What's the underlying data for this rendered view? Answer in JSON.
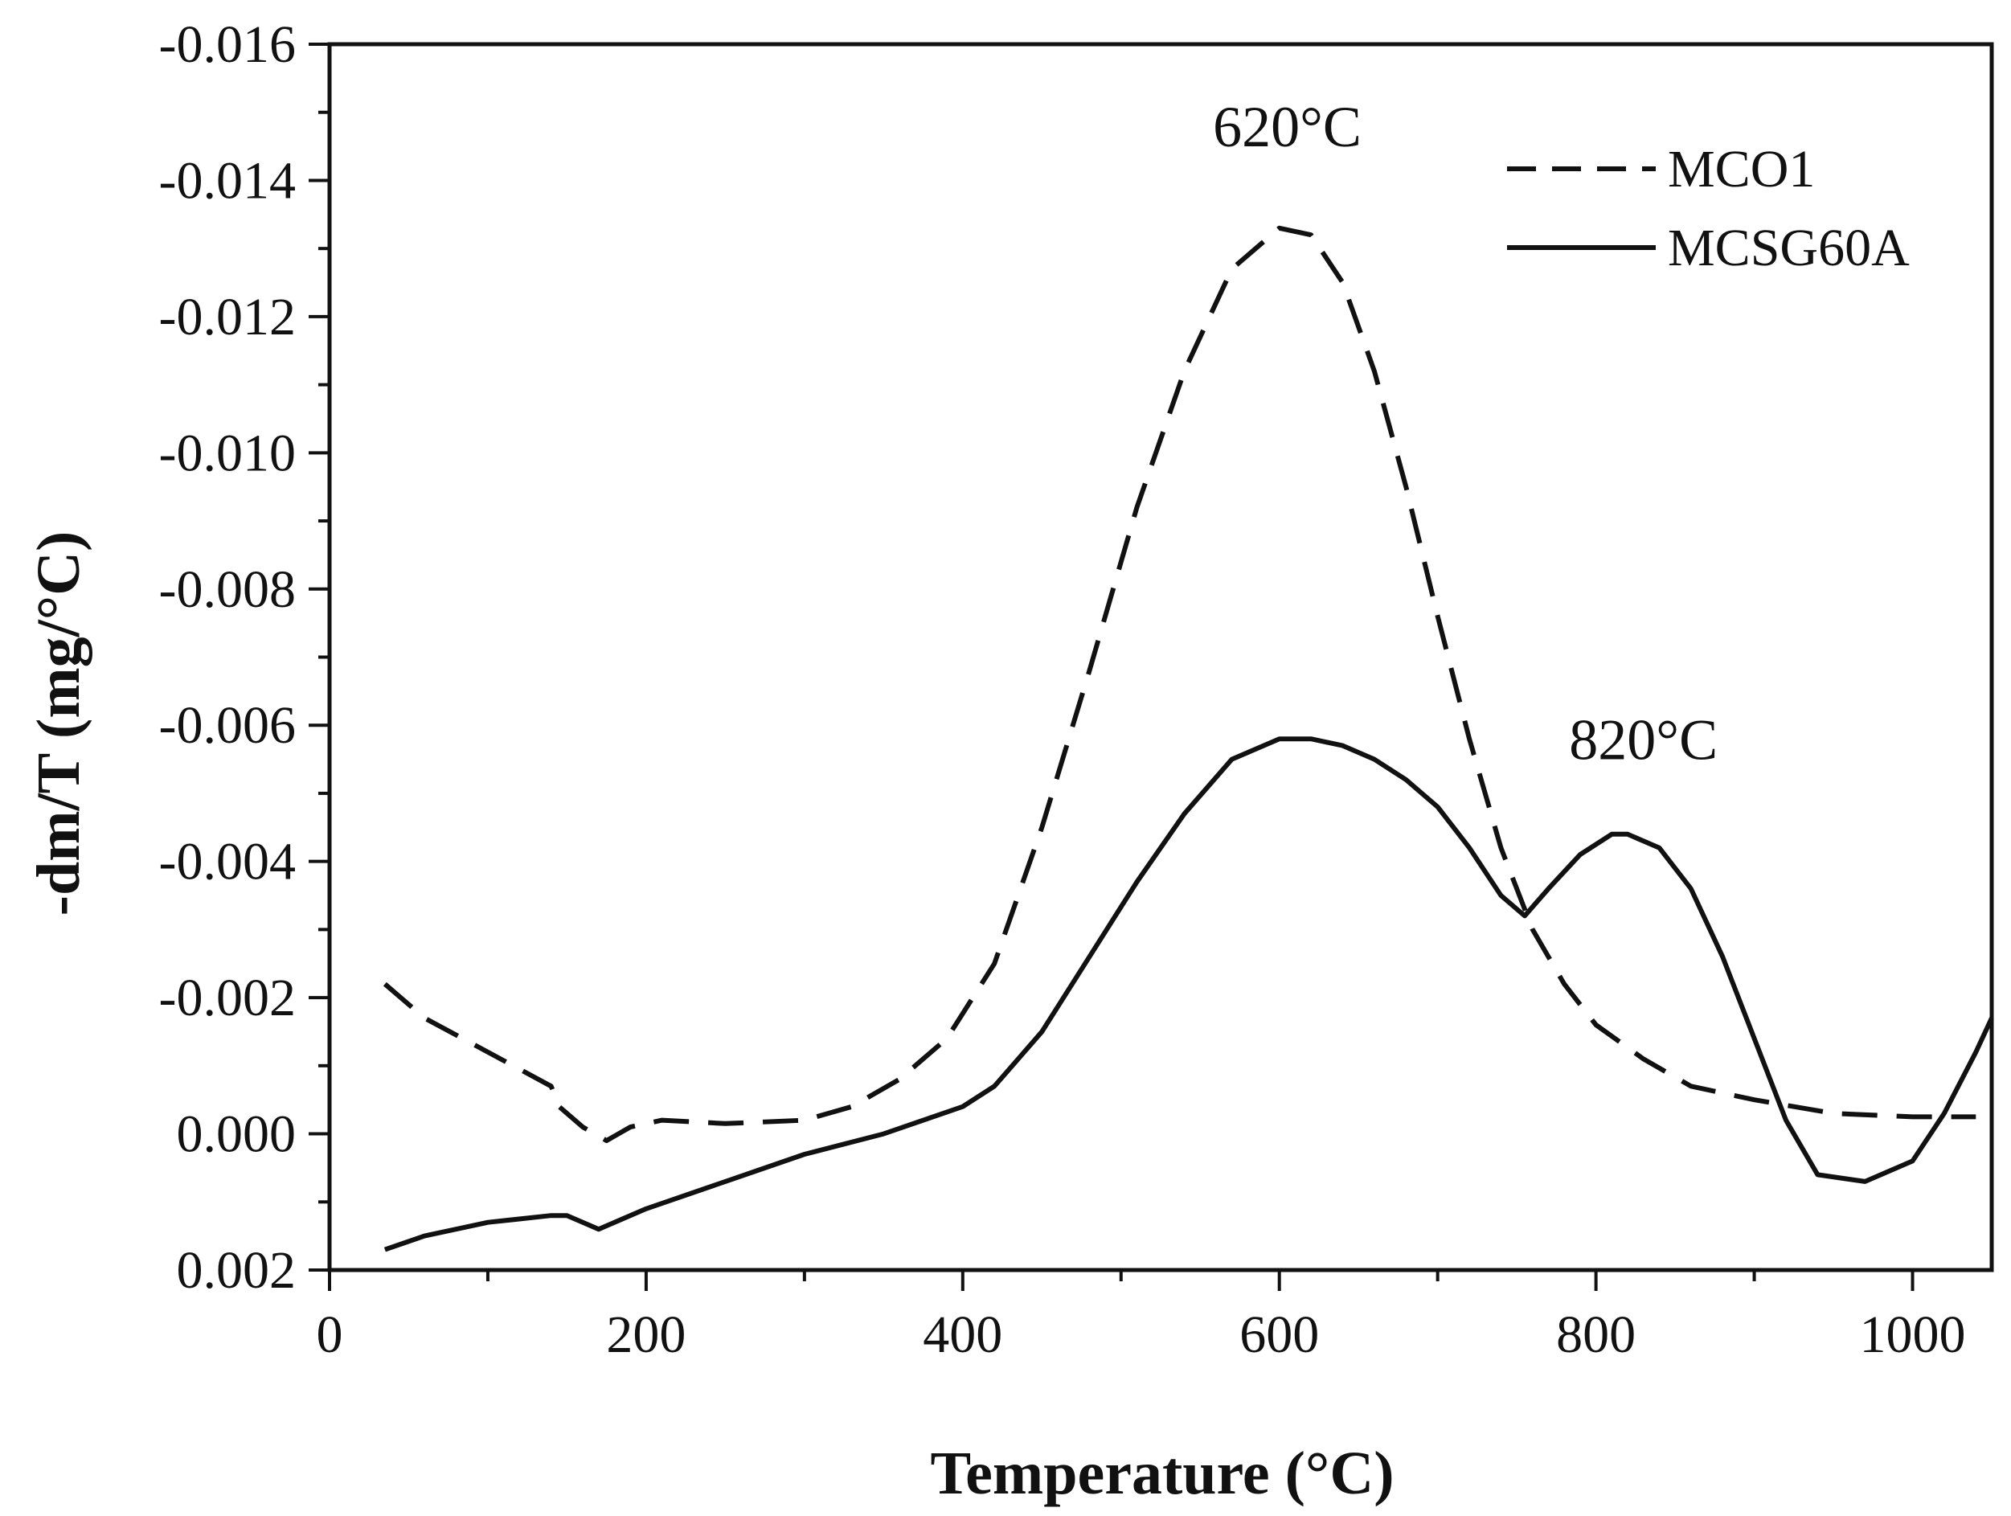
{
  "chart_data": {
    "type": "line",
    "title": "",
    "xlabel": "Temperature (°C)",
    "ylabel": "-dm/T (mg/°C)",
    "xlim": [
      0,
      1050
    ],
    "ylim": [
      0.002,
      -0.016
    ],
    "x_ticks": [
      0,
      200,
      400,
      600,
      800,
      1000
    ],
    "x_tick_labels": [
      "0",
      "200",
      "400",
      "600",
      "800",
      "1000"
    ],
    "y_ticks": [
      0.002,
      0.0,
      -0.002,
      -0.004,
      -0.006,
      -0.008,
      -0.01,
      -0.012,
      -0.014,
      -0.016
    ],
    "y_tick_labels": [
      "0.002",
      "0.000",
      "-0.002",
      "-0.004",
      "-0.006",
      "-0.008",
      "-0.010",
      "-0.012",
      "-0.014",
      "-0.016"
    ],
    "grid": false,
    "legend_position": "top-right",
    "series": [
      {
        "name": "MCO1",
        "style": "dashed",
        "x": [
          35,
          60,
          100,
          140,
          145,
          160,
          175,
          190,
          210,
          250,
          300,
          330,
          360,
          390,
          420,
          450,
          480,
          510,
          540,
          570,
          600,
          620,
          640,
          660,
          680,
          700,
          720,
          740,
          760,
          780,
          800,
          830,
          860,
          900,
          950,
          1000,
          1040
        ],
        "values": [
          -0.0022,
          -0.0017,
          -0.0012,
          -0.0007,
          -0.0004,
          -0.0001,
          0.0001,
          -0.0001,
          -0.0002,
          -0.00015,
          -0.0002,
          -0.0004,
          -0.0008,
          -0.0014,
          -0.0025,
          -0.0045,
          -0.0068,
          -0.0092,
          -0.0112,
          -0.0127,
          -0.0133,
          -0.0132,
          -0.0125,
          -0.0112,
          -0.0095,
          -0.0076,
          -0.0058,
          -0.0042,
          -0.003,
          -0.0022,
          -0.0016,
          -0.0011,
          -0.0007,
          -0.0005,
          -0.0003,
          -0.00025,
          -0.00025
        ]
      },
      {
        "name": "MCSG60A",
        "style": "solid",
        "x": [
          35,
          60,
          100,
          140,
          150,
          170,
          200,
          250,
          300,
          350,
          400,
          420,
          450,
          480,
          510,
          540,
          570,
          600,
          620,
          640,
          660,
          680,
          700,
          720,
          740,
          755,
          770,
          790,
          810,
          820,
          840,
          860,
          880,
          900,
          920,
          940,
          970,
          1000,
          1020,
          1040,
          1050
        ],
        "values": [
          0.0017,
          0.0015,
          0.0013,
          0.0012,
          0.0012,
          0.0014,
          0.0011,
          0.0007,
          0.0003,
          0.0,
          -0.0004,
          -0.0007,
          -0.0015,
          -0.0026,
          -0.0037,
          -0.0047,
          -0.0055,
          -0.0058,
          -0.0058,
          -0.0057,
          -0.0055,
          -0.0052,
          -0.0048,
          -0.0042,
          -0.0035,
          -0.0032,
          -0.0036,
          -0.0041,
          -0.0044,
          -0.0044,
          -0.0042,
          -0.0036,
          -0.0026,
          -0.0014,
          -0.0002,
          0.0006,
          0.0007,
          0.0004,
          -0.0003,
          -0.0012,
          -0.0017
        ]
      }
    ],
    "annotations": [
      {
        "text": "620°C",
        "x": 605,
        "y": -0.0145
      },
      {
        "text": "820°C",
        "x": 830,
        "y": -0.0055
      }
    ]
  }
}
